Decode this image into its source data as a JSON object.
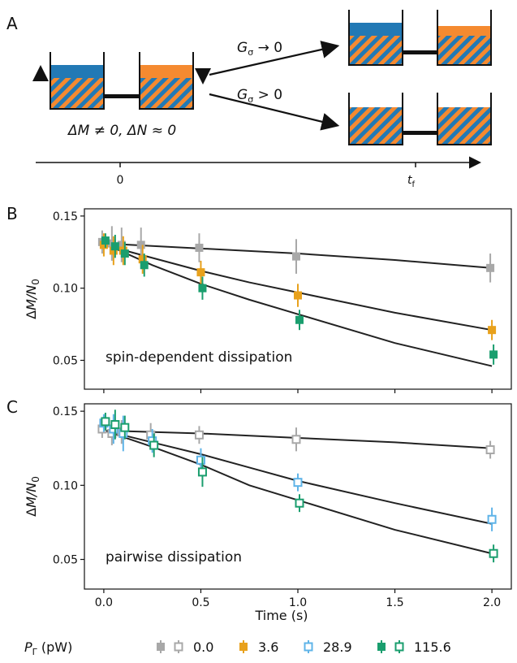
{
  "colors": {
    "blue": "#2279b5",
    "orange": "#f58a30",
    "yellow": "#e8a11c",
    "gray": "#a8a8a8",
    "lightblue": "#5fb4e8",
    "green": "#1a9e6e",
    "line": "#222222"
  },
  "panelA": {
    "letter": "A",
    "left_label": "ΔM ≠ 0, ΔN ≈ 0",
    "arrow_top_label": "G",
    "arrow_top_sub": "σ",
    "arrow_top_rel": " → 0",
    "arrow_bottom_label": "G",
    "arrow_bottom_sub": "σ",
    "arrow_bottom_rel": " > 0",
    "time_zero": "0",
    "time_final": "t",
    "time_final_sub": "f"
  },
  "chart_data": [
    {
      "panel": "B",
      "type": "scatter",
      "ylabel": "ΔM/N0",
      "annotation": "spin-dependent dissipation",
      "xlim": [
        -0.1,
        2.1
      ],
      "ylim": [
        0.03,
        0.155
      ],
      "yticks": [
        "0.05",
        "0.10",
        "0.15"
      ],
      "series": [
        {
          "name": "0.0",
          "color": "gray",
          "filled": true,
          "x": [
            0,
            0.05,
            0.1,
            0.2,
            0.5,
            1.0,
            2.0
          ],
          "y": [
            0.132,
            0.131,
            0.13,
            0.13,
            0.128,
            0.122,
            0.114
          ],
          "err": [
            0.008,
            0.012,
            0.012,
            0.012,
            0.01,
            0.012,
            0.01
          ]
        },
        {
          "name": "3.6",
          "color": "yellow",
          "filled": true,
          "x": [
            0,
            0.05,
            0.1,
            0.2,
            0.5,
            1.0,
            2.0
          ],
          "y": [
            0.13,
            0.126,
            0.126,
            0.12,
            0.111,
            0.095,
            0.071
          ],
          "err": [
            0.008,
            0.01,
            0.01,
            0.01,
            0.008,
            0.008,
            0.007
          ]
        },
        {
          "name": "115.6",
          "color": "green",
          "filled": true,
          "x": [
            0,
            0.05,
            0.1,
            0.2,
            0.5,
            1.0,
            2.0
          ],
          "y": [
            0.133,
            0.129,
            0.124,
            0.116,
            0.1,
            0.078,
            0.054
          ],
          "err": [
            0.005,
            0.008,
            0.008,
            0.008,
            0.008,
            0.007,
            0.007
          ]
        }
      ],
      "fits": [
        {
          "color": "line",
          "x": [
            0,
            0.5,
            1.0,
            1.5,
            2.0
          ],
          "y": [
            0.131,
            0.1275,
            0.124,
            0.1195,
            0.114
          ]
        },
        {
          "color": "line",
          "x": [
            0,
            0.25,
            0.5,
            0.75,
            1.0,
            1.5,
            2.0
          ],
          "y": [
            0.13,
            0.121,
            0.112,
            0.104,
            0.097,
            0.083,
            0.071
          ]
        },
        {
          "color": "line",
          "x": [
            0,
            0.25,
            0.5,
            0.75,
            1.0,
            1.5,
            2.0
          ],
          "y": [
            0.131,
            0.116,
            0.103,
            0.092,
            0.082,
            0.062,
            0.046
          ]
        }
      ]
    },
    {
      "panel": "C",
      "type": "scatter",
      "ylabel": "ΔM/N0",
      "xlabel": "Time (s)",
      "annotation": "pairwise dissipation",
      "xlim": [
        -0.1,
        2.1
      ],
      "ylim": [
        0.03,
        0.155
      ],
      "yticks": [
        "0.05",
        "0.10",
        "0.15"
      ],
      "xticks": [
        "0.0",
        "0.5",
        "1.0",
        "1.5",
        "2.0"
      ],
      "series": [
        {
          "name": "0.0",
          "color": "gray",
          "filled": false,
          "x": [
            0,
            0.05,
            0.1,
            0.25,
            0.5,
            1.0,
            2.0
          ],
          "y": [
            0.138,
            0.135,
            0.136,
            0.134,
            0.134,
            0.131,
            0.124
          ],
          "err": [
            0.006,
            0.008,
            0.008,
            0.008,
            0.006,
            0.008,
            0.006
          ]
        },
        {
          "name": "28.9",
          "color": "lightblue",
          "filled": false,
          "x": [
            0,
            0.05,
            0.1,
            0.25,
            0.5,
            1.0,
            2.0
          ],
          "y": [
            0.142,
            0.138,
            0.135,
            0.13,
            0.117,
            0.102,
            0.077
          ],
          "err": [
            0.006,
            0.01,
            0.012,
            0.008,
            0.008,
            0.006,
            0.008
          ]
        },
        {
          "name": "115.6",
          "color": "green",
          "filled": false,
          "x": [
            0,
            0.05,
            0.1,
            0.25,
            0.5,
            1.0,
            2.0
          ],
          "y": [
            0.143,
            0.141,
            0.139,
            0.127,
            0.109,
            0.088,
            0.054
          ],
          "err": [
            0.006,
            0.01,
            0.008,
            0.008,
            0.01,
            0.006,
            0.006
          ]
        }
      ],
      "fits": [
        {
          "color": "line",
          "x": [
            0,
            0.5,
            1.0,
            1.5,
            2.0
          ],
          "y": [
            0.137,
            0.135,
            0.132,
            0.129,
            0.125
          ]
        },
        {
          "color": "line",
          "x": [
            0,
            0.25,
            0.5,
            0.75,
            1.0,
            1.5,
            2.0
          ],
          "y": [
            0.137,
            0.129,
            0.121,
            0.112,
            0.103,
            0.088,
            0.074
          ]
        },
        {
          "color": "line",
          "x": [
            0,
            0.25,
            0.5,
            0.75,
            1.0,
            1.5,
            2.0
          ],
          "y": [
            0.137,
            0.126,
            0.114,
            0.1,
            0.09,
            0.07,
            0.054
          ]
        }
      ]
    }
  ],
  "legend": {
    "symbol": "P",
    "symbol_sub": "Γ",
    "unit": " (pW)",
    "entries": [
      {
        "label": "0.0",
        "color": "gray",
        "markers": [
          "filled",
          "open"
        ]
      },
      {
        "label": "3.6",
        "color": "yellow",
        "markers": [
          "filled"
        ]
      },
      {
        "label": "28.9",
        "color": "lightblue",
        "markers": [
          "open"
        ]
      },
      {
        "label": "115.6",
        "color": "green",
        "markers": [
          "filled",
          "open"
        ]
      }
    ]
  }
}
